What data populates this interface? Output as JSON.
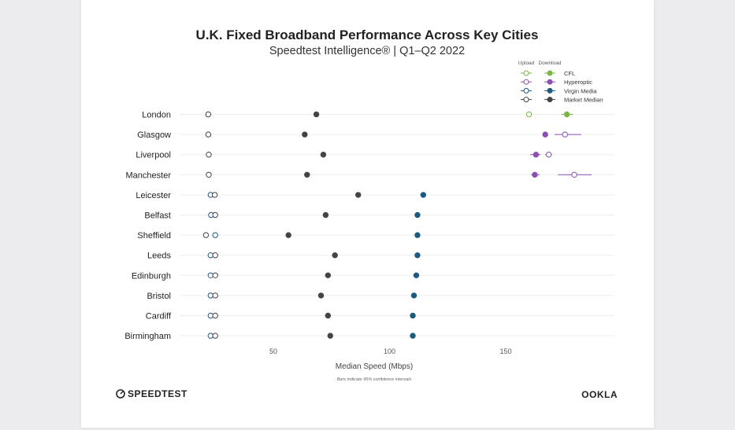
{
  "colors": {
    "CFL": "#7ab648",
    "Hyperoptic": "#8a4fb0",
    "Virgin Media": "#1d5a7e",
    "Market Median": "#444444",
    "grid": "#ededed"
  },
  "footer": {
    "brand_left": "SPEEDTEST",
    "brand_right": "OOKLA"
  },
  "chart_data": {
    "type": "scatter",
    "title": "U.K. Fixed Broadband Performance Across Key Cities",
    "subtitle": "Speedtest Intelligence® | Q1–Q2 2022",
    "xlabel": "Median Speed (Mbps)",
    "note": "Bars indicate 95% confidence intervals",
    "xticks": [
      50,
      100,
      150
    ],
    "xlim": [
      20,
      197
    ],
    "grid": "horizontal",
    "legend": {
      "placement": "top-right",
      "upload_heading": "Upload",
      "download_heading": "Download",
      "entries": [
        "CFL",
        "Hyperoptic",
        "Virgin Media",
        "Market Median"
      ]
    },
    "cities": [
      "London",
      "Glasgow",
      "Liverpool",
      "Manchester",
      "Leicester",
      "Belfast",
      "Sheffield",
      "Leeds",
      "Edinburgh",
      "Bristol",
      "Cardiff",
      "Birmingham"
    ],
    "points": [
      {
        "city": "London",
        "series": "Market Median",
        "kind": "Upload",
        "value": 22.0
      },
      {
        "city": "London",
        "series": "Market Median",
        "kind": "Download",
        "value": 68.5
      },
      {
        "city": "London",
        "series": "CFL",
        "kind": "Upload",
        "value": 160.0,
        "ci": [
          160.0,
          160.0
        ]
      },
      {
        "city": "London",
        "series": "CFL",
        "kind": "Download",
        "value": 176.3,
        "ci": [
          174.0,
          179.0
        ]
      },
      {
        "city": "Glasgow",
        "series": "Market Median",
        "kind": "Upload",
        "value": 22.0
      },
      {
        "city": "Glasgow",
        "series": "Market Median",
        "kind": "Download",
        "value": 63.5
      },
      {
        "city": "Glasgow",
        "series": "Hyperoptic",
        "kind": "Download",
        "value": 167.0
      },
      {
        "city": "Glasgow",
        "series": "Hyperoptic",
        "kind": "Upload",
        "value": 175.5,
        "ci": [
          171.0,
          182.5
        ]
      },
      {
        "city": "Liverpool",
        "series": "Market Median",
        "kind": "Upload",
        "value": 22.2
      },
      {
        "city": "Liverpool",
        "series": "Market Median",
        "kind": "Download",
        "value": 71.5
      },
      {
        "city": "Liverpool",
        "series": "Hyperoptic",
        "kind": "Download",
        "value": 163.0,
        "ci": [
          160.5,
          165.0
        ]
      },
      {
        "city": "Liverpool",
        "series": "Hyperoptic",
        "kind": "Upload",
        "value": 168.5,
        "ci": [
          167.0,
          169.8
        ]
      },
      {
        "city": "Manchester",
        "series": "Market Median",
        "kind": "Upload",
        "value": 22.2
      },
      {
        "city": "Manchester",
        "series": "Market Median",
        "kind": "Download",
        "value": 64.5
      },
      {
        "city": "Manchester",
        "series": "Hyperoptic",
        "kind": "Download",
        "value": 162.5,
        "ci": [
          161.0,
          164.5
        ]
      },
      {
        "city": "Manchester",
        "series": "Hyperoptic",
        "kind": "Upload",
        "value": 179.5,
        "ci": [
          172.5,
          187.0
        ]
      },
      {
        "city": "Leicester",
        "series": "Market Median",
        "kind": "Download",
        "value": 86.5
      },
      {
        "city": "Leicester",
        "series": "Virgin Media",
        "kind": "Download",
        "value": 114.5
      },
      {
        "city": "Leicester",
        "series": "Virgin Media",
        "kind": "Upload",
        "value": 23.0
      },
      {
        "city": "Leicester",
        "series": "Market Median",
        "kind": "Upload",
        "value": 24.8
      },
      {
        "city": "Belfast",
        "series": "Market Median",
        "kind": "Download",
        "value": 72.5
      },
      {
        "city": "Belfast",
        "series": "Virgin Media",
        "kind": "Download",
        "value": 112.0
      },
      {
        "city": "Belfast",
        "series": "Virgin Media",
        "kind": "Upload",
        "value": 23.2
      },
      {
        "city": "Belfast",
        "series": "Market Median",
        "kind": "Upload",
        "value": 25.0
      },
      {
        "city": "Sheffield",
        "series": "Market Median",
        "kind": "Download",
        "value": 56.5
      },
      {
        "city": "Sheffield",
        "series": "Virgin Media",
        "kind": "Download",
        "value": 112.0
      },
      {
        "city": "Sheffield",
        "series": "Market Median",
        "kind": "Upload",
        "value": 21.0
      },
      {
        "city": "Sheffield",
        "series": "Virgin Media",
        "kind": "Upload",
        "value": 25.0
      },
      {
        "city": "Leeds",
        "series": "Market Median",
        "kind": "Download",
        "value": 76.5
      },
      {
        "city": "Leeds",
        "series": "Virgin Media",
        "kind": "Download",
        "value": 112.0
      },
      {
        "city": "Leeds",
        "series": "Virgin Media",
        "kind": "Upload",
        "value": 23.0
      },
      {
        "city": "Leeds",
        "series": "Market Median",
        "kind": "Upload",
        "value": 25.0
      },
      {
        "city": "Edinburgh",
        "series": "Market Median",
        "kind": "Download",
        "value": 73.5
      },
      {
        "city": "Edinburgh",
        "series": "Virgin Media",
        "kind": "Download",
        "value": 111.5
      },
      {
        "city": "Edinburgh",
        "series": "Virgin Media",
        "kind": "Upload",
        "value": 23.0
      },
      {
        "city": "Edinburgh",
        "series": "Market Median",
        "kind": "Upload",
        "value": 25.0
      },
      {
        "city": "Bristol",
        "series": "Market Median",
        "kind": "Download",
        "value": 70.5
      },
      {
        "city": "Bristol",
        "series": "Virgin Media",
        "kind": "Download",
        "value": 110.5
      },
      {
        "city": "Bristol",
        "series": "Virgin Media",
        "kind": "Upload",
        "value": 23.0
      },
      {
        "city": "Bristol",
        "series": "Market Median",
        "kind": "Upload",
        "value": 25.0
      },
      {
        "city": "Cardiff",
        "series": "Market Median",
        "kind": "Download",
        "value": 73.5
      },
      {
        "city": "Cardiff",
        "series": "Virgin Media",
        "kind": "Download",
        "value": 110.0
      },
      {
        "city": "Cardiff",
        "series": "Virgin Media",
        "kind": "Upload",
        "value": 23.0
      },
      {
        "city": "Cardiff",
        "series": "Market Median",
        "kind": "Upload",
        "value": 25.0
      },
      {
        "city": "Birmingham",
        "series": "Market Median",
        "kind": "Download",
        "value": 74.5
      },
      {
        "city": "Birmingham",
        "series": "Virgin Media",
        "kind": "Download",
        "value": 110.0
      },
      {
        "city": "Birmingham",
        "series": "Virgin Media",
        "kind": "Upload",
        "value": 23.0
      },
      {
        "city": "Birmingham",
        "series": "Market Median",
        "kind": "Upload",
        "value": 25.0
      }
    ]
  }
}
